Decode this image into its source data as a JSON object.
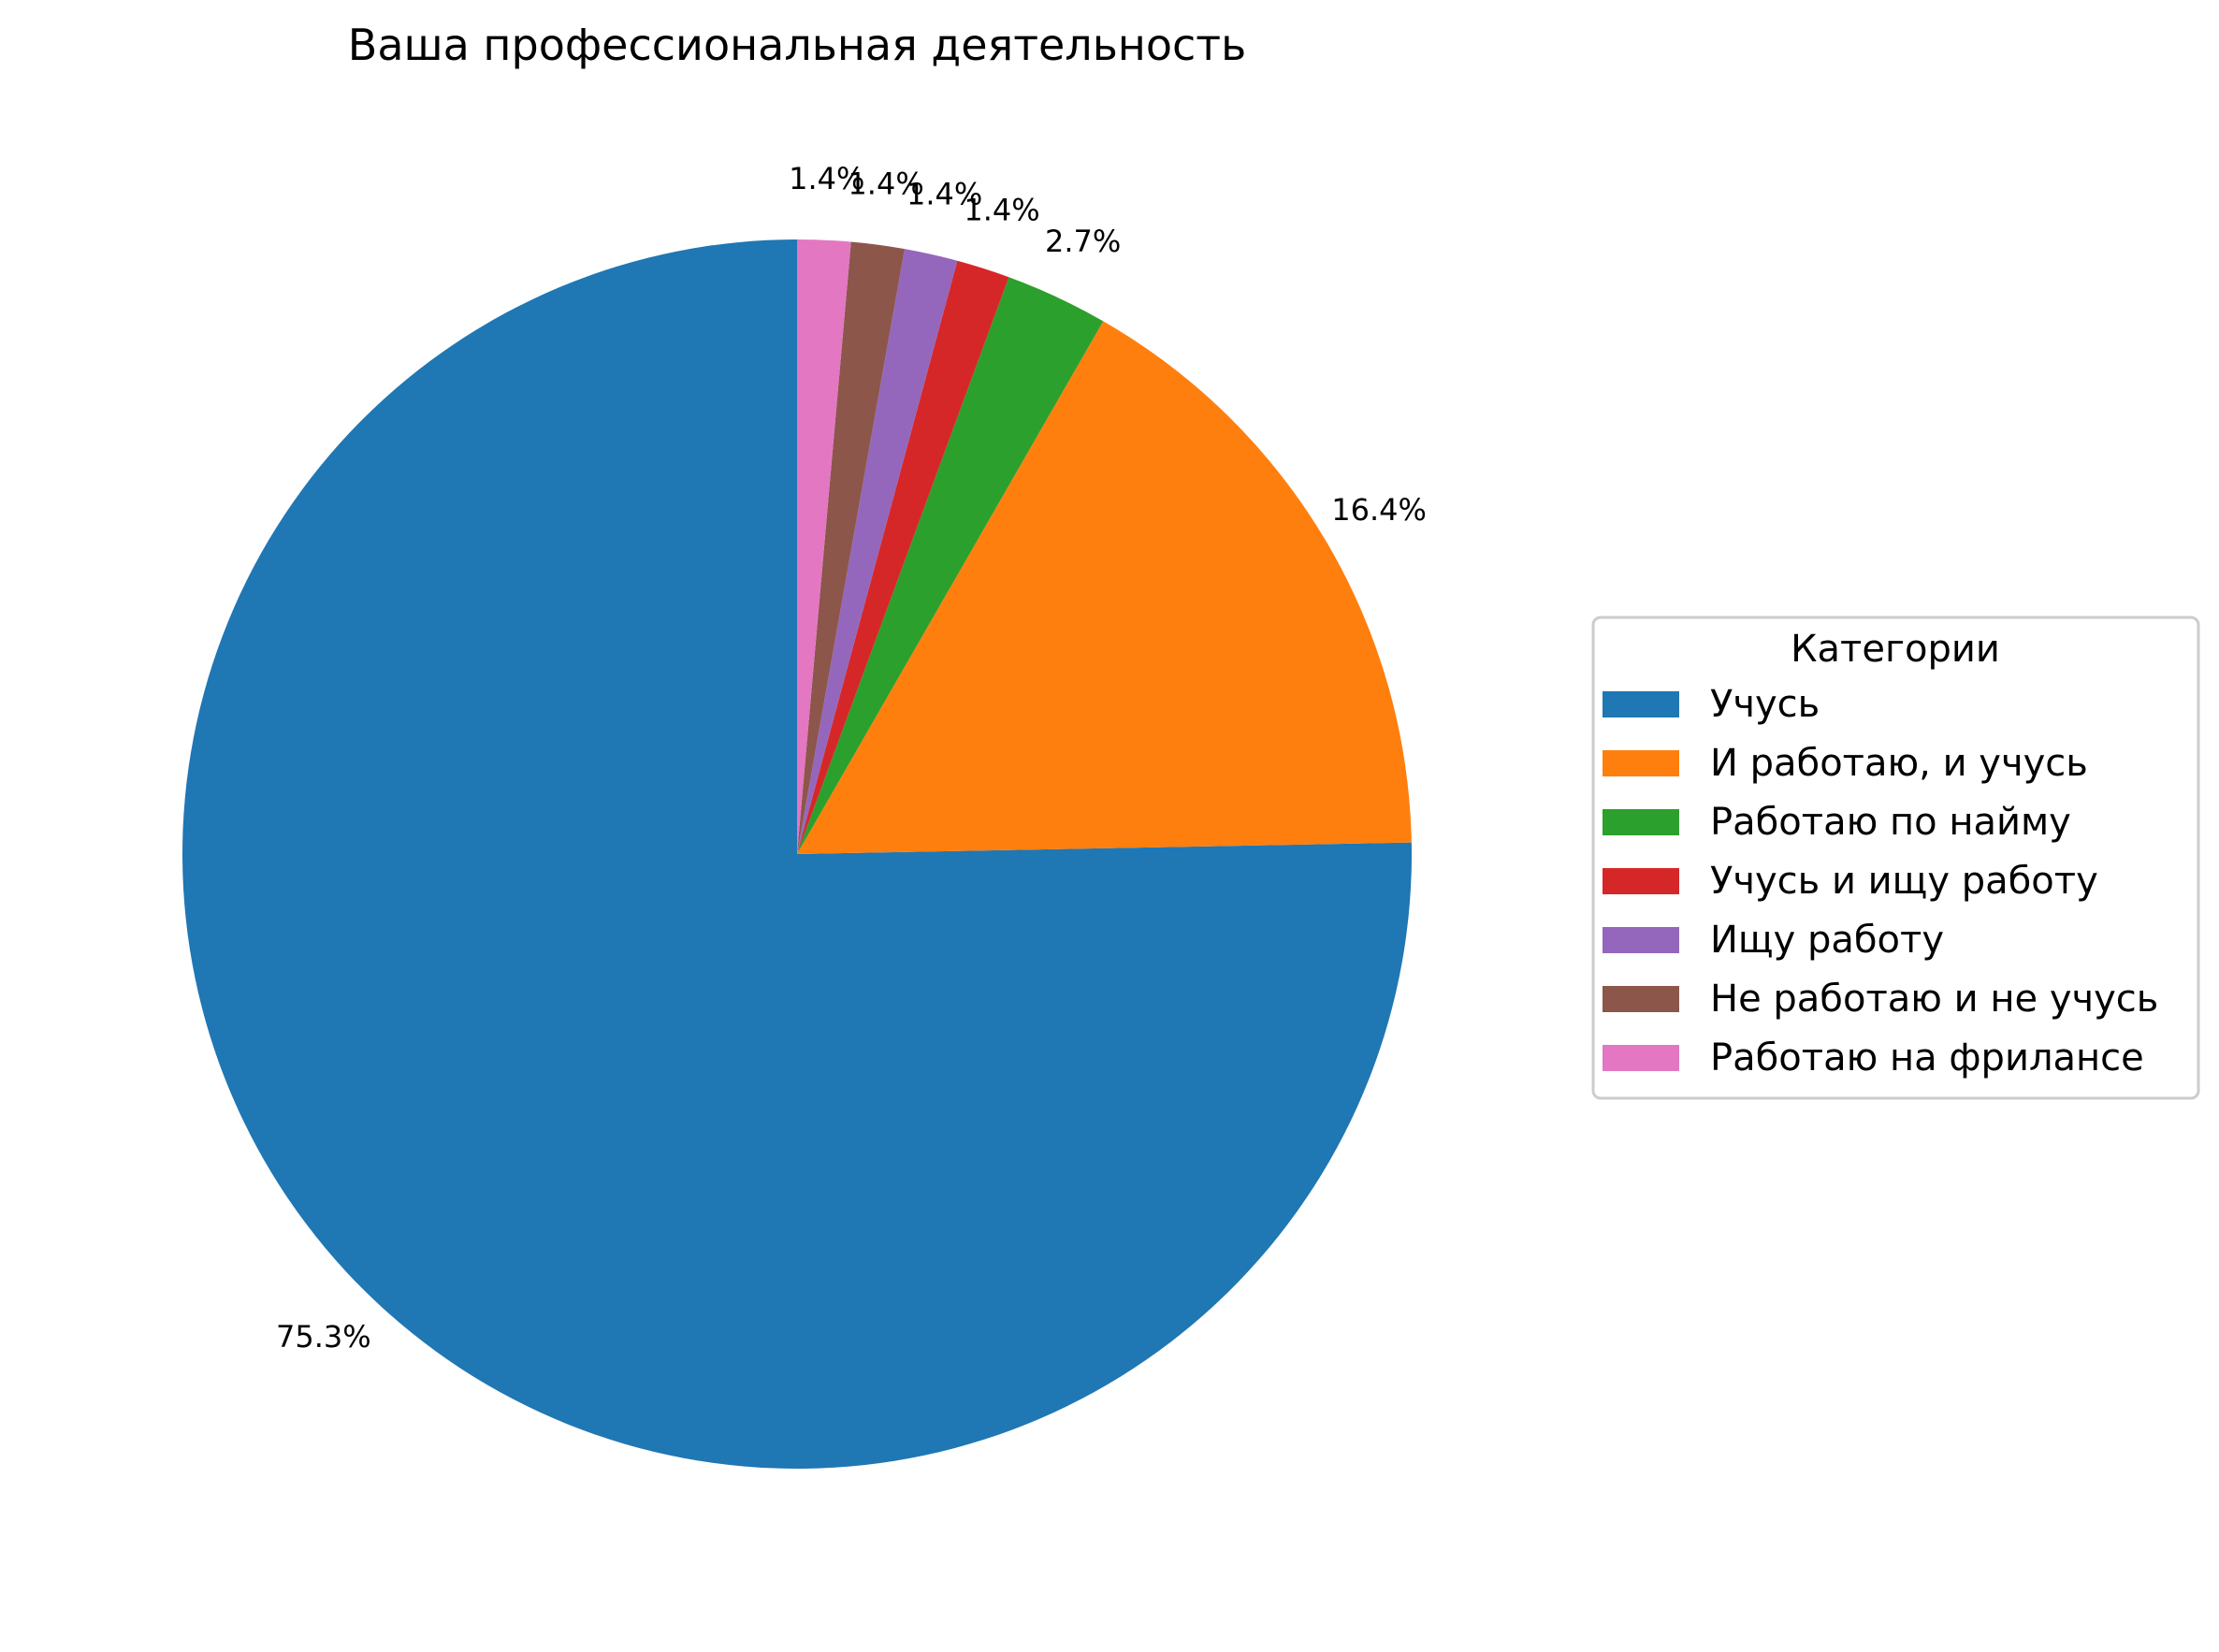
{
  "chart_data": {
    "type": "pie",
    "title": "Ваша профессиональная деятельность",
    "legend_title": "Категории",
    "legend_position": "right",
    "start_angle_deg": 90,
    "direction": "counterclockwise",
    "categories": [
      "Учусь",
      "И работаю, и учусь",
      "Работаю по найму",
      "Учусь и ищу работу",
      "Ищу работу",
      "Не работаю и не учусь",
      "Работаю на фрилансе"
    ],
    "values": [
      75.3,
      16.4,
      2.7,
      1.4,
      1.4,
      1.4,
      1.4
    ],
    "labels": [
      "75.3%",
      "16.4%",
      "2.7%",
      "1.4%",
      "1.4%",
      "1.4%",
      "1.4%"
    ],
    "colors": [
      "#1f77b4",
      "#ff7f0e",
      "#2ca02c",
      "#d62728",
      "#9467bd",
      "#8c564b",
      "#e377c2"
    ]
  }
}
